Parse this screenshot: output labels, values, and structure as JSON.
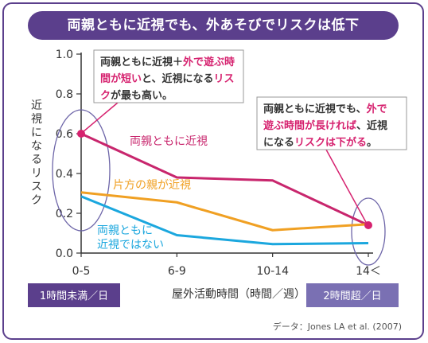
{
  "title": "両親ともに近視でも、外あそびでリスクは低下",
  "chart_data": {
    "type": "line",
    "categories": [
      "0-5",
      "6-9",
      "10-14",
      "14＜"
    ],
    "ylabel": "近視になるリスク",
    "xlabel": "屋外活動時間（時間／週）",
    "ylim": [
      0.0,
      1.0
    ],
    "yticks": [
      "0.0",
      "0.2",
      "0.4",
      "0.6",
      "0.8",
      "1.0"
    ],
    "grid": false,
    "series": [
      {
        "name": "両親ともに近視",
        "values": [
          0.6,
          0.38,
          0.365,
          0.14
        ],
        "color": "#c8266d"
      },
      {
        "name": "片方の親が近視",
        "values": [
          0.305,
          0.255,
          0.115,
          0.145
        ],
        "color": "#f0a023"
      },
      {
        "name": "両親ともに\n近視ではない",
        "values": [
          0.285,
          0.09,
          0.045,
          0.05
        ],
        "color": "#1ba7de"
      }
    ]
  },
  "notes": {
    "left": [
      [
        {
          "t": "両親ともに近視＋",
          "hl": false
        },
        {
          "t": "外で遊ぶ時",
          "hl": true
        }
      ],
      [
        {
          "t": "間が短い",
          "hl": true
        },
        {
          "t": "と、近視になる",
          "hl": false
        },
        {
          "t": "リス",
          "hl": true
        }
      ],
      [
        {
          "t": "ク",
          "hl": true
        },
        {
          "t": "が最も高い。",
          "hl": false
        }
      ]
    ],
    "right": [
      [
        {
          "t": "両親ともに近視でも、",
          "hl": false
        },
        {
          "t": "外で",
          "hl": true
        }
      ],
      [
        {
          "t": "遊ぶ時間が長ければ",
          "hl": true
        },
        {
          "t": "、近視",
          "hl": false
        }
      ],
      [
        {
          "t": "になる",
          "hl": false
        },
        {
          "t": "リスクは下がる",
          "hl": true
        },
        {
          "t": "。",
          "hl": false
        }
      ]
    ]
  },
  "badges": {
    "left": "1時間未満／日",
    "right": "2時間超／日"
  },
  "source": "データ：Jones LA et al. (2007)",
  "colors": {
    "frame": "#5b3f8c",
    "highlight": "#d6226f",
    "ellipse": "#6d65a8"
  }
}
